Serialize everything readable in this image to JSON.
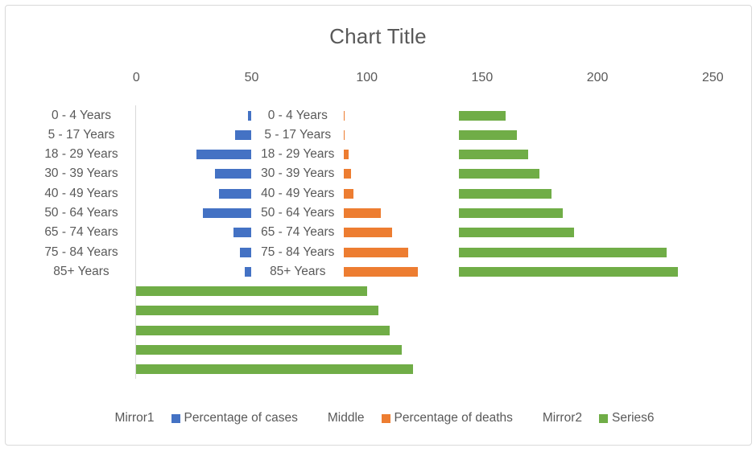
{
  "chart_data": {
    "type": "bar",
    "orientation": "horizontal-stacked",
    "title": "Chart Title",
    "axis": {
      "position": "top",
      "min": 0,
      "max": 250,
      "step": 50,
      "ticks": [
        "0",
        "50",
        "100",
        "150",
        "200",
        "250"
      ],
      "gridlines": false
    },
    "categories": [
      "0 - 4 Years",
      "5 - 17 Years",
      "18 - 29 Years",
      "30 - 39 Years",
      "40 - 49 Years",
      "50 - 64 Years",
      "65 - 74 Years",
      "75 - 84 Years",
      "85+ Years",
      "",
      "",
      "",
      "",
      ""
    ],
    "middle_data_labels": [
      "0 - 4 Years",
      "5 - 17 Years",
      "18 - 29 Years",
      "30 - 39 Years",
      "40 - 49 Years",
      "50 - 64 Years",
      "65 - 74 Years",
      "75 - 84 Years",
      "85+ Years"
    ],
    "series": [
      {
        "name": "Mirror1",
        "color": null,
        "role": "invisible-spacer",
        "values": [
          48.5,
          43,
          26,
          34,
          36,
          29,
          42,
          45,
          47,
          0,
          0,
          0,
          0,
          0
        ]
      },
      {
        "name": "Percentage of cases",
        "color": "#4472C4",
        "role": "data",
        "values": [
          1.5,
          7,
          24,
          16,
          14,
          21,
          8,
          5,
          3,
          0,
          0,
          0,
          0,
          0
        ]
      },
      {
        "name": "Middle",
        "color": null,
        "role": "invisible-spacer-with-labels",
        "values": [
          40,
          40,
          40,
          40,
          40,
          40,
          40,
          40,
          40,
          0,
          0,
          0,
          0,
          0
        ]
      },
      {
        "name": "Percentage of deaths",
        "color": "#ED7D31",
        "role": "data",
        "values": [
          0.2,
          0.3,
          2,
          3,
          4,
          16,
          21,
          28,
          32,
          0,
          0,
          0,
          0,
          0
        ]
      },
      {
        "name": "Mirror2",
        "color": null,
        "role": "invisible-spacer",
        "values": [
          49.8,
          49.7,
          48,
          47,
          46,
          34,
          29,
          22,
          18,
          0,
          0,
          0,
          0,
          0
        ]
      },
      {
        "name": "Series6",
        "color": "#70AD47",
        "role": "data",
        "values": [
          20,
          25,
          30,
          35,
          40,
          45,
          50,
          90,
          95,
          100,
          105,
          110,
          115,
          120
        ]
      }
    ],
    "legend": [
      {
        "label": "Mirror1",
        "color": null
      },
      {
        "label": "Percentage of cases",
        "color": "#4472C4"
      },
      {
        "label": "Middle",
        "color": null
      },
      {
        "label": "Percentage of deaths",
        "color": "#ED7D31"
      },
      {
        "label": "Mirror2",
        "color": null
      },
      {
        "label": "Series6",
        "color": "#70AD47"
      }
    ],
    "colors": {
      "text": "#595959",
      "axis_line": "#D9D9D9",
      "cases_blue": "#4472C4",
      "deaths_orange": "#ED7D31",
      "series6_green": "#70AD47",
      "frame_border": "#D9D9D9",
      "background": "#FFFFFF"
    }
  }
}
